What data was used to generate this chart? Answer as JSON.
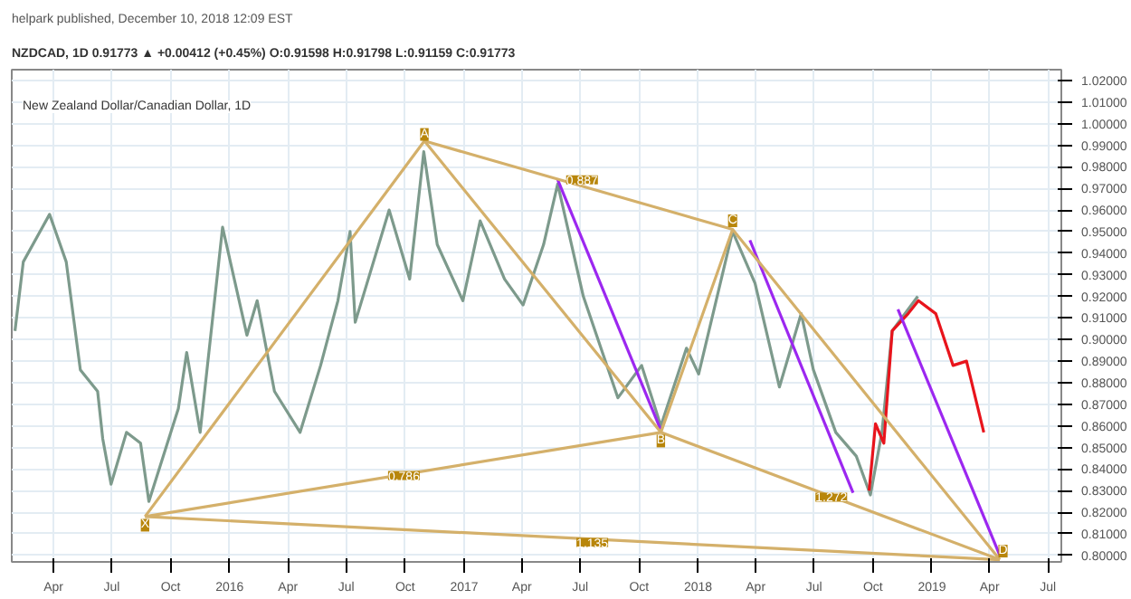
{
  "chart_data": {
    "type": "line",
    "title": "NZDCAD, 1D 0.91773 ▲ +0.00412 (+0.45%) O:0.91598 H:0.91798 L:0.91159 C:0.91773",
    "subtitle": "helpark published, December 10, 2018 12:09 EST",
    "annotations": [
      "New Zealand Dollar/Canadian Dollar, 1D",
      {
        "text": "X",
        "x": "2015-08-22",
        "y": 0.814
      },
      {
        "text": "A",
        "x": "2016-10-31",
        "y": 0.995
      },
      {
        "text": "B",
        "x": "2017-11-04",
        "y": 0.853
      },
      {
        "text": "C",
        "x": "2018-02-24",
        "y": 0.955
      },
      {
        "text": "D",
        "x": "2019-04-22",
        "y": 0.802
      },
      {
        "text": "0.786",
        "x": "2016-09-29",
        "y": 0.837
      },
      {
        "text": "0.887",
        "x": "2017-07-04",
        "y": 0.974
      },
      {
        "text": "1.272",
        "x": "2018-07-28",
        "y": 0.827
      },
      {
        "text": "1.135",
        "x": "2017-07-20",
        "y": 0.806
      }
    ],
    "x": [
      "2015-01-31",
      "2015-02-13",
      "2015-03-26",
      "2015-04-21",
      "2015-05-13",
      "2015-06-09",
      "2015-06-17",
      "2015-06-30",
      "2015-07-24",
      "2015-08-15",
      "2015-08-28",
      "2015-10-13",
      "2015-10-26",
      "2015-11-16",
      "2015-12-21",
      "2016-01-28",
      "2016-02-13",
      "2016-03-11",
      "2016-04-20",
      "2016-05-22",
      "2016-06-18",
      "2016-07-07",
      "2016-07-15",
      "2016-09-06",
      "2016-10-08",
      "2016-10-30",
      "2016-11-20",
      "2016-12-30",
      "2017-01-26",
      "2017-03-05",
      "2017-04-03",
      "2017-05-05",
      "2017-05-27",
      "2017-07-06",
      "2017-08-29",
      "2017-10-05",
      "2017-11-04",
      "2017-12-14",
      "2018-01-02",
      "2018-02-24",
      "2018-03-31",
      "2018-05-08",
      "2018-06-11",
      "2018-06-30",
      "2018-08-04",
      "2018-09-05",
      "2018-09-27",
      "2018-10-15",
      "2018-10-31",
      "2018-12-10"
    ],
    "series": [
      {
        "color": "#7d9a8c",
        "values": [
          0.904,
          0.936,
          0.958,
          0.936,
          0.886,
          0.876,
          0.854,
          0.833,
          0.857,
          0.852,
          0.825,
          0.868,
          0.894,
          0.857,
          0.952,
          0.902,
          0.918,
          0.876,
          0.857,
          0.888,
          0.918,
          0.95,
          0.908,
          0.96,
          0.928,
          0.987,
          0.944,
          0.918,
          0.955,
          0.928,
          0.916,
          0.944,
          0.972,
          0.92,
          0.873,
          0.888,
          0.86,
          0.896,
          0.884,
          0.95,
          0.926,
          0.878,
          0.912,
          0.886,
          0.857,
          0.846,
          0.828,
          0.857,
          0.904,
          0.92
        ]
      },
      {
        "color": "#e8141c",
        "x": [
          "2018-09-25",
          "2018-10-05",
          "2018-10-18",
          "2018-10-31",
          "2018-11-25",
          "2018-12-11",
          "2019-01-07",
          "2019-02-03",
          "2019-02-24",
          "2019-03-23"
        ],
        "values": [
          0.83,
          0.861,
          0.852,
          0.904,
          0.912,
          0.918,
          0.912,
          0.888,
          0.89,
          0.857
        ]
      },
      {
        "color": "#9c27f0",
        "x": [
          "2017-05-27",
          "2017-11-04"
        ],
        "values": [
          0.974,
          0.858
        ]
      },
      {
        "color": "#9c27f0",
        "x": [
          "2018-03-23",
          "2018-08-31"
        ],
        "values": [
          0.946,
          0.829
        ]
      },
      {
        "color": "#9c27f0",
        "x": [
          "2018-11-09",
          "2019-04-17"
        ],
        "values": [
          0.914,
          0.8
        ]
      },
      {
        "color": "#d4b06a",
        "x": [
          "2015-08-22",
          "2016-10-31",
          "2017-11-04",
          "2018-02-24",
          "2019-04-17"
        ],
        "values": [
          0.818,
          0.992,
          0.857,
          0.951,
          0.798
        ]
      },
      {
        "color": "#d4b06a",
        "x": [
          "2015-08-22",
          "2017-11-04"
        ],
        "values": [
          0.818,
          0.857
        ]
      },
      {
        "color": "#d4b06a",
        "x": [
          "2016-10-31",
          "2018-02-24"
        ],
        "values": [
          0.992,
          0.951
        ]
      },
      {
        "color": "#d4b06a",
        "x": [
          "2017-11-04",
          "2019-04-17"
        ],
        "values": [
          0.857,
          0.798
        ]
      },
      {
        "color": "#d4b06a",
        "x": [
          "2015-08-22",
          "2019-04-17"
        ],
        "values": [
          0.818,
          0.798
        ]
      }
    ],
    "xlim": [
      "2015-01-26",
      "2019-07-22"
    ],
    "xticks": [
      {
        "value": "2015-04-01",
        "label": "Apr"
      },
      {
        "value": "2015-07-01",
        "label": "Jul"
      },
      {
        "value": "2015-10-01",
        "label": "Oct"
      },
      {
        "value": "2016-01-01",
        "label": "2016"
      },
      {
        "value": "2016-04-01",
        "label": "Apr"
      },
      {
        "value": "2016-07-01",
        "label": "Jul"
      },
      {
        "value": "2016-10-01",
        "label": "Oct"
      },
      {
        "value": "2017-01-01",
        "label": "2017"
      },
      {
        "value": "2017-04-01",
        "label": "Apr"
      },
      {
        "value": "2017-07-01",
        "label": "Jul"
      },
      {
        "value": "2017-10-01",
        "label": "Oct"
      },
      {
        "value": "2018-01-01",
        "label": "2018"
      },
      {
        "value": "2018-04-01",
        "label": "Apr"
      },
      {
        "value": "2018-07-01",
        "label": "Jul"
      },
      {
        "value": "2018-10-01",
        "label": "Oct"
      },
      {
        "value": "2019-01-01",
        "label": "2019"
      },
      {
        "value": "2019-04-01",
        "label": "Apr"
      },
      {
        "value": "2019-07-01",
        "label": "Jul"
      }
    ],
    "ylim": [
      0.797,
      1.025
    ],
    "yticks": [
      {
        "value": 0.8,
        "label": "0.80000"
      },
      {
        "value": 0.81,
        "label": "0.81000"
      },
      {
        "value": 0.82,
        "label": "0.82000"
      },
      {
        "value": 0.83,
        "label": "0.83000"
      },
      {
        "value": 0.84,
        "label": "0.84000"
      },
      {
        "value": 0.85,
        "label": "0.85000"
      },
      {
        "value": 0.86,
        "label": "0.86000"
      },
      {
        "value": 0.87,
        "label": "0.87000"
      },
      {
        "value": 0.88,
        "label": "0.88000"
      },
      {
        "value": 0.89,
        "label": "0.89000"
      },
      {
        "value": 0.9,
        "label": "0.90000"
      },
      {
        "value": 0.91,
        "label": "0.91000"
      },
      {
        "value": 0.92,
        "label": "0.92000"
      },
      {
        "value": 0.93,
        "label": "0.93000"
      },
      {
        "value": 0.94,
        "label": "0.94000"
      },
      {
        "value": 0.95,
        "label": "0.95000"
      },
      {
        "value": 0.96,
        "label": "0.96000"
      },
      {
        "value": 0.97,
        "label": "0.97000"
      },
      {
        "value": 0.98,
        "label": "0.98000"
      },
      {
        "value": 0.99,
        "label": "0.99000"
      },
      {
        "value": 1.0,
        "label": "1.00000"
      },
      {
        "value": 1.01,
        "label": "1.01000"
      },
      {
        "value": 1.02,
        "label": "1.02000"
      }
    ],
    "grid": true,
    "line_style": "solid"
  }
}
